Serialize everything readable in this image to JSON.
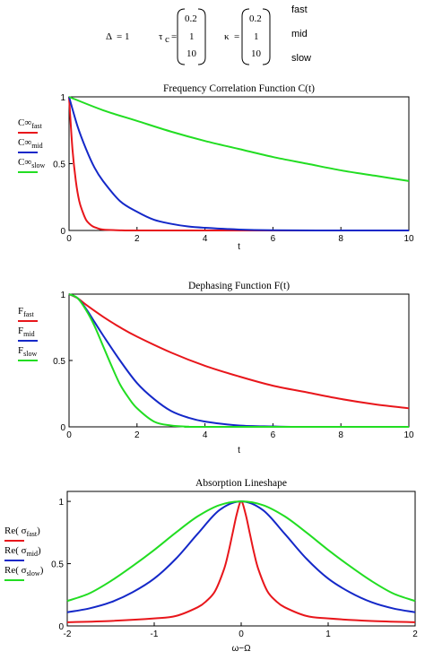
{
  "header": {
    "delta_symbol": "Δ",
    "delta_eq": "= 1",
    "tau_symbol": "τ",
    "tau_sub": "c",
    "tau_eq": "=",
    "tau_values": [
      "0.2",
      "1",
      "10"
    ],
    "kappa_symbol": "κ",
    "kappa_eq": "=",
    "kappa_values": [
      "0.2",
      "1",
      "10"
    ],
    "regimes": [
      "fast",
      "mid",
      "slow"
    ]
  },
  "colors": {
    "fast": "#e8161b",
    "mid": "#1428c8",
    "slow": "#22dd22"
  },
  "chart_data": [
    {
      "type": "line",
      "title": "Frequency Correlation Function C(t)",
      "xlabel": "t",
      "ylabel": "",
      "xlim": [
        0,
        10
      ],
      "ylim": [
        0,
        1
      ],
      "x_ticks": [
        0,
        2,
        4,
        6,
        8,
        10
      ],
      "y_ticks": [
        0,
        0.5,
        1
      ],
      "x_tick_labels": [
        "0",
        "2",
        "4",
        "6",
        "8",
        "10"
      ],
      "y_tick_labels": [
        "0",
        "0.5",
        "1"
      ],
      "legend_placement": "left",
      "series": [
        {
          "legend_main": "C∞",
          "legend_sub": "fast",
          "color": "#e8161b",
          "x": [
            0,
            0.1,
            0.2,
            0.3,
            0.4,
            0.5,
            0.6,
            0.7,
            0.8,
            1.0,
            1.5,
            2,
            4,
            6,
            8,
            10
          ],
          "y": [
            1,
            0.61,
            0.37,
            0.22,
            0.14,
            0.08,
            0.05,
            0.03,
            0.02,
            0.007,
            0.001,
            0,
            0,
            0,
            0,
            0
          ]
        },
        {
          "legend_main": "C∞",
          "legend_sub": "mid",
          "color": "#1428c8",
          "x": [
            0,
            0.25,
            0.5,
            0.75,
            1,
            1.5,
            2,
            2.5,
            3,
            3.5,
            4,
            5,
            6,
            8,
            10
          ],
          "y": [
            1,
            0.78,
            0.61,
            0.47,
            0.37,
            0.22,
            0.14,
            0.08,
            0.05,
            0.03,
            0.02,
            0.007,
            0.002,
            0,
            0
          ]
        },
        {
          "legend_main": "C∞",
          "legend_sub": "slow",
          "color": "#22dd22",
          "x": [
            0,
            1,
            2,
            3,
            4,
            5,
            6,
            7,
            8,
            9,
            10
          ],
          "y": [
            1,
            0.9,
            0.82,
            0.74,
            0.67,
            0.61,
            0.55,
            0.5,
            0.45,
            0.41,
            0.37
          ]
        }
      ]
    },
    {
      "type": "line",
      "title": "Dephasing Function F(t)",
      "xlabel": "t",
      "ylabel": "",
      "xlim": [
        0,
        10
      ],
      "ylim": [
        0,
        1
      ],
      "x_ticks": [
        0,
        2,
        4,
        6,
        8,
        10
      ],
      "y_ticks": [
        0,
        0.5,
        1
      ],
      "x_tick_labels": [
        "0",
        "2",
        "4",
        "6",
        "8",
        "10"
      ],
      "y_tick_labels": [
        "0",
        "0.5",
        "1"
      ],
      "legend_placement": "left",
      "series": [
        {
          "legend_main": "F",
          "legend_sub": "fast",
          "color": "#e8161b",
          "x": [
            0,
            0.25,
            0.5,
            1,
            1.5,
            2,
            3,
            4,
            5,
            6,
            7,
            8,
            9,
            10
          ],
          "y": [
            1,
            0.97,
            0.92,
            0.83,
            0.75,
            0.68,
            0.56,
            0.46,
            0.38,
            0.31,
            0.26,
            0.21,
            0.17,
            0.14
          ]
        },
        {
          "legend_main": "F",
          "legend_sub": "mid",
          "color": "#1428c8",
          "x": [
            0,
            0.25,
            0.5,
            0.75,
            1,
            1.5,
            2,
            2.5,
            3,
            3.5,
            4,
            5,
            6,
            7,
            10
          ],
          "y": [
            1,
            0.97,
            0.89,
            0.79,
            0.69,
            0.5,
            0.33,
            0.21,
            0.12,
            0.07,
            0.04,
            0.01,
            0.003,
            0,
            0
          ]
        },
        {
          "legend_main": "F",
          "legend_sub": "slow",
          "color": "#22dd22",
          "x": [
            0,
            0.25,
            0.5,
            0.75,
            1,
            1.25,
            1.5,
            1.75,
            2,
            2.5,
            3,
            3.5,
            4,
            10
          ],
          "y": [
            1,
            0.97,
            0.88,
            0.76,
            0.61,
            0.46,
            0.32,
            0.22,
            0.14,
            0.04,
            0.01,
            0.002,
            0,
            0
          ]
        }
      ]
    },
    {
      "type": "line",
      "title": "Absorption Lineshape",
      "xlabel": "ω−Ω",
      "ylabel": "",
      "xlim": [
        -2,
        2
      ],
      "ylim": [
        0,
        1.08
      ],
      "x_ticks": [
        -2,
        -1,
        0,
        1,
        2
      ],
      "y_ticks": [
        0,
        0.5,
        1
      ],
      "x_tick_labels": [
        "-2",
        "-1",
        "0",
        "1",
        "2"
      ],
      "y_tick_labels": [
        "0",
        "0.5",
        "1"
      ],
      "legend_placement": "left",
      "series": [
        {
          "legend_main": "Re",
          "legend_sub": "fast",
          "color": "#e8161b",
          "x": [
            -2,
            -1.5,
            -1,
            -0.75,
            -0.5,
            -0.4,
            -0.3,
            -0.2,
            -0.15,
            -0.1,
            -0.05,
            0,
            0.05,
            0.1,
            0.15,
            0.2,
            0.3,
            0.4,
            0.5,
            0.75,
            1,
            1.5,
            2
          ],
          "y": [
            0.03,
            0.04,
            0.06,
            0.08,
            0.15,
            0.2,
            0.28,
            0.45,
            0.58,
            0.74,
            0.9,
            1.0,
            0.9,
            0.74,
            0.58,
            0.45,
            0.28,
            0.2,
            0.15,
            0.08,
            0.06,
            0.04,
            0.03
          ]
        },
        {
          "legend_main": "Re",
          "legend_sub": "mid",
          "color": "#1428c8",
          "x": [
            -2,
            -1.75,
            -1.5,
            -1.25,
            -1,
            -0.75,
            -0.5,
            -0.25,
            0,
            0.25,
            0.5,
            0.75,
            1,
            1.25,
            1.5,
            1.75,
            2
          ],
          "y": [
            0.11,
            0.14,
            0.19,
            0.27,
            0.38,
            0.54,
            0.74,
            0.93,
            1.0,
            0.93,
            0.74,
            0.54,
            0.38,
            0.27,
            0.19,
            0.14,
            0.11
          ]
        },
        {
          "legend_main": "Re",
          "legend_sub": "slow",
          "color": "#22dd22",
          "x": [
            -2,
            -1.75,
            -1.5,
            -1.25,
            -1,
            -0.75,
            -0.5,
            -0.25,
            0,
            0.25,
            0.5,
            0.75,
            1,
            1.25,
            1.5,
            1.75,
            2
          ],
          "y": [
            0.2,
            0.26,
            0.36,
            0.48,
            0.61,
            0.75,
            0.88,
            0.97,
            1.0,
            0.97,
            0.88,
            0.75,
            0.61,
            0.48,
            0.36,
            0.26,
            0.2
          ]
        }
      ]
    }
  ]
}
